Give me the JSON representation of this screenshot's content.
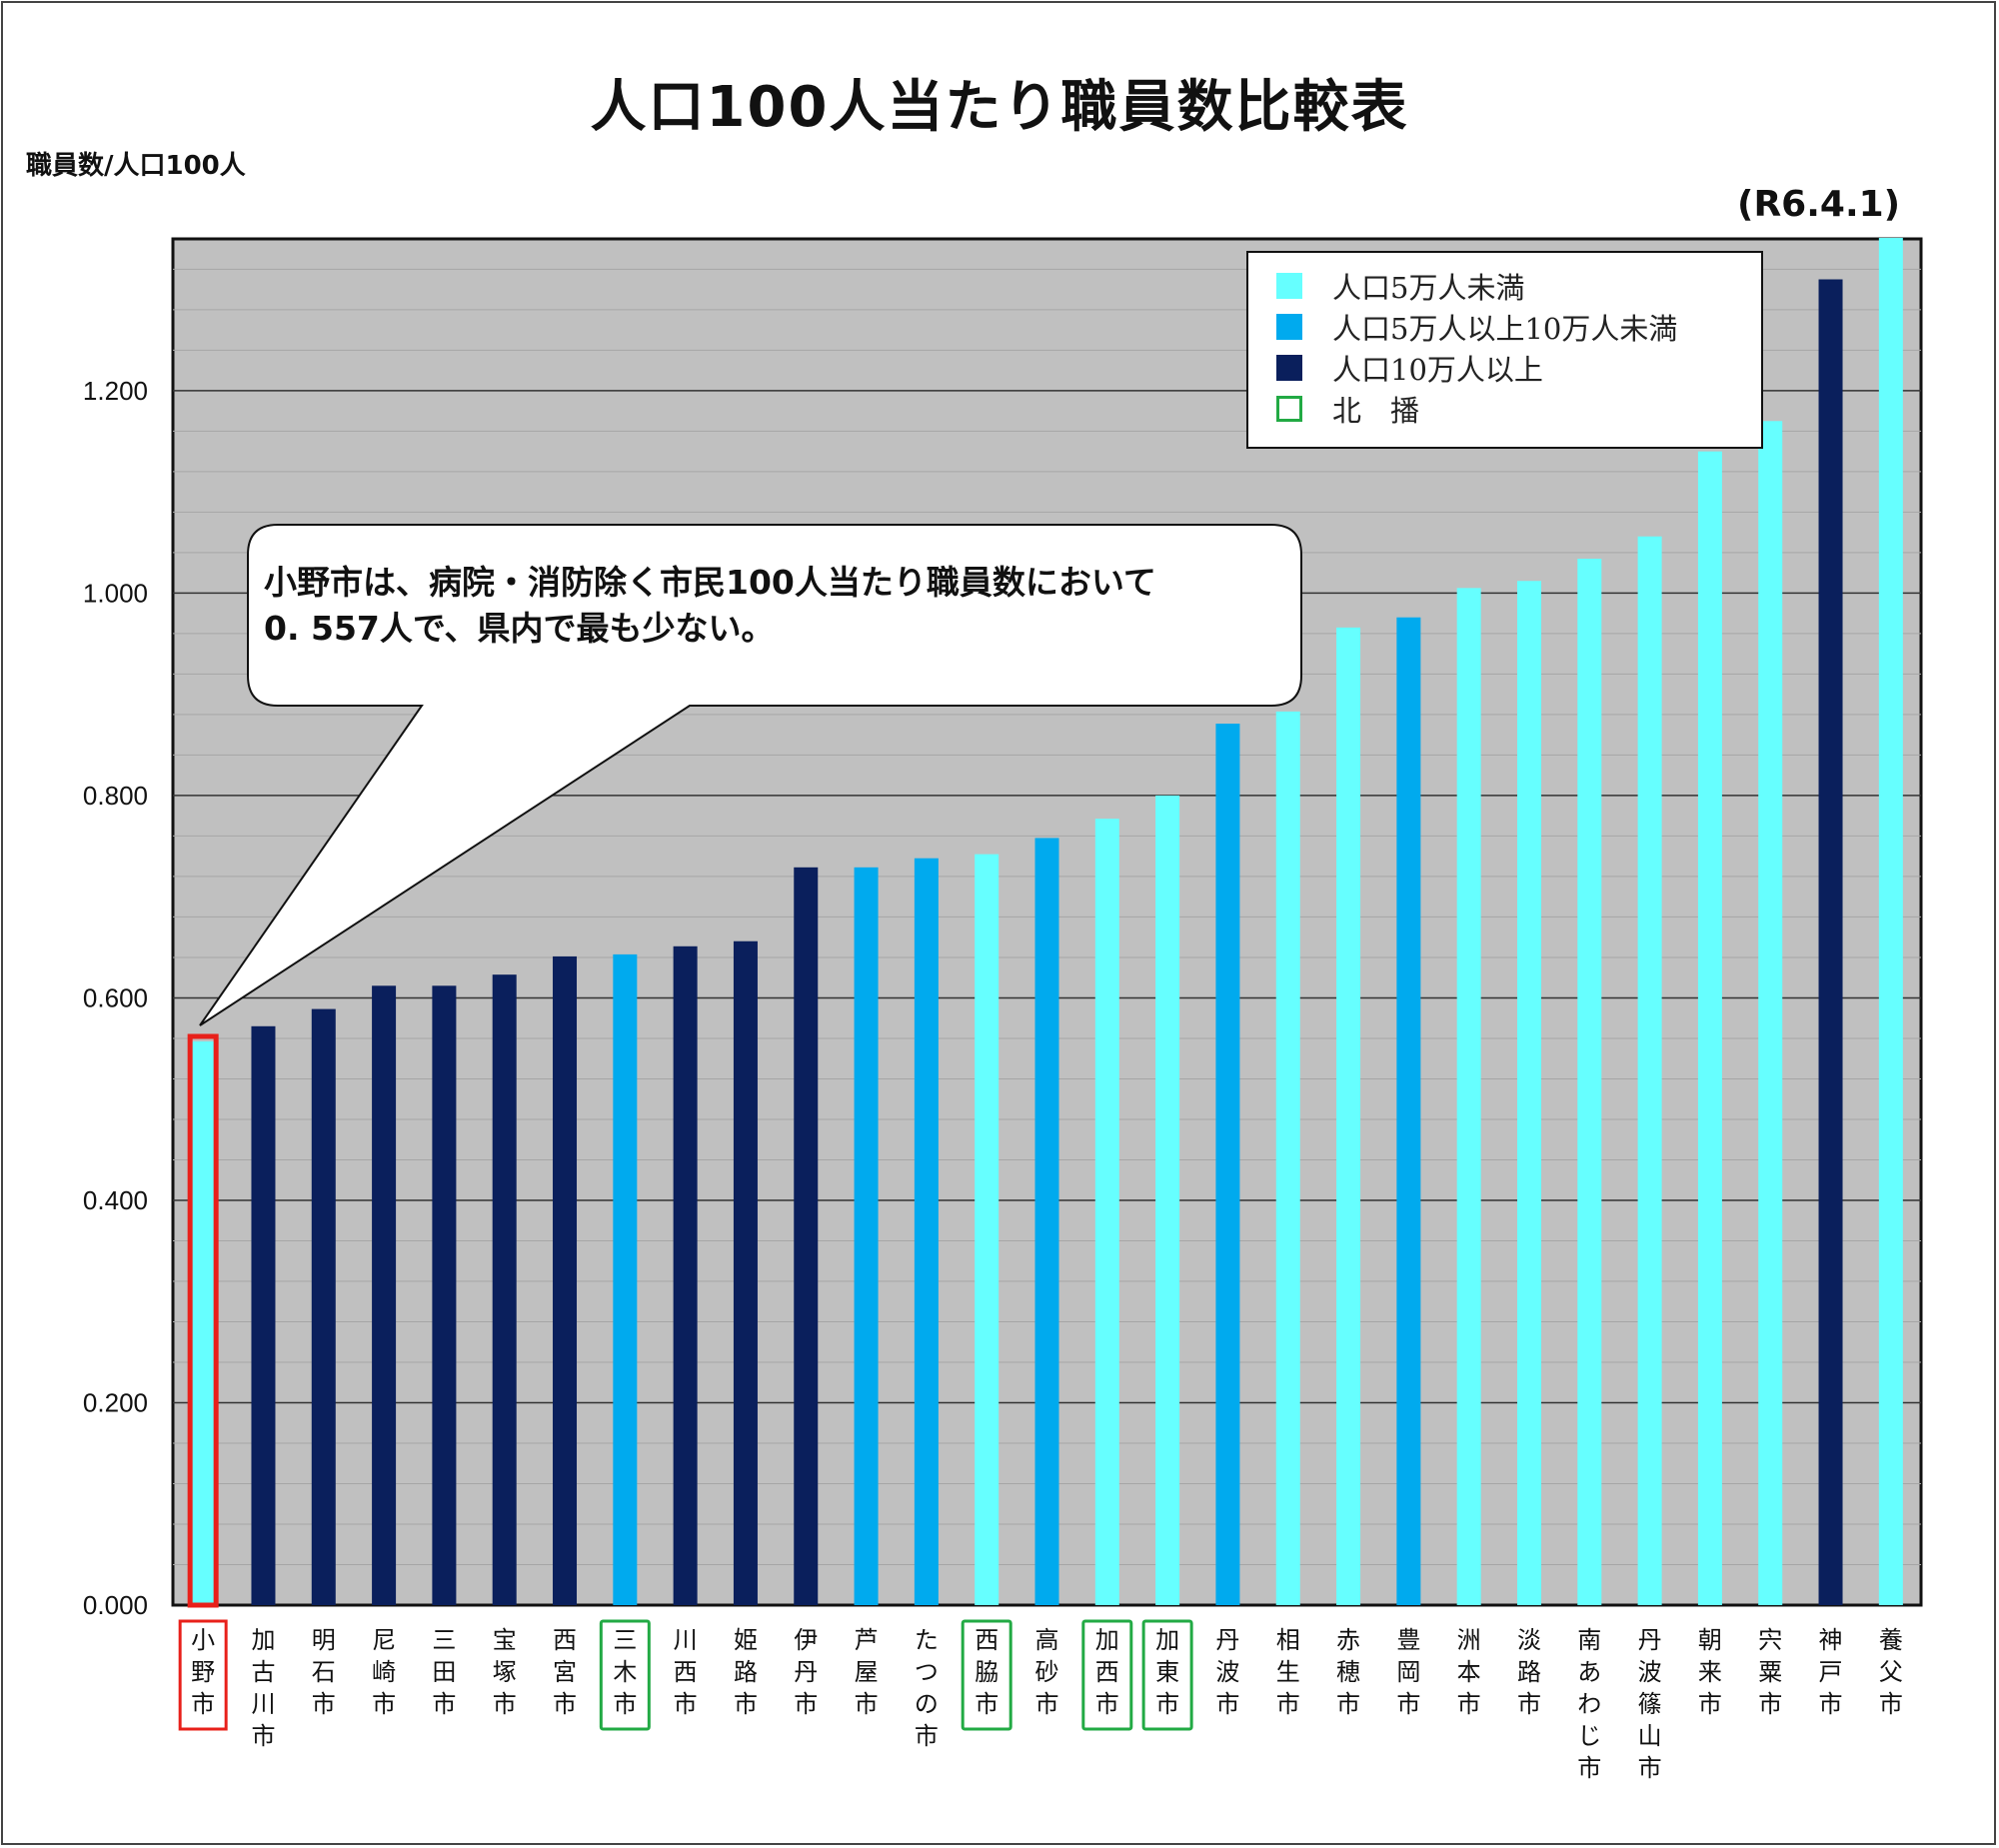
{
  "title": "人口100人当たり職員数比較表",
  "y_unit_label": "職員数/人口100人",
  "as_of": "(R6.4.1)",
  "callout": {
    "line1": "小野市は、病院・消防除く市民100人当たり職員数において",
    "line2": "0. 557人で、県内で最も少ない。"
  },
  "legend": [
    {
      "label": "人口5万人未満",
      "color": "#66FFFF",
      "style": "filled"
    },
    {
      "label": "人口5万人以上10万人未満",
      "color": "#00AAEE",
      "style": "filled"
    },
    {
      "label": "人口10万人以上",
      "color": "#0A1F5C",
      "style": "filled"
    },
    {
      "label": "北　播",
      "color": "#22AA44",
      "style": "outline"
    }
  ],
  "colors": {
    "small": "#66FFFF",
    "medium": "#00AAEE",
    "large": "#0A1F5C",
    "hokuban_outline": "#22AA44",
    "ono_outline": "#E8201A",
    "plot_background": "#C0C0C0"
  },
  "chart_data": {
    "type": "bar",
    "ylim": [
      0,
      1.35
    ],
    "yticks": [
      "0.000",
      "0.200",
      "0.400",
      "0.600",
      "0.800",
      "1.000",
      "1.200"
    ],
    "grid": true,
    "legend_position": "top-right",
    "categories": [
      "小野市",
      "加古川市",
      "明石市",
      "尼崎市",
      "三田市",
      "宝塚市",
      "西宮市",
      "三木市",
      "川西市",
      "姫路市",
      "伊丹市",
      "芦屋市",
      "たつの市",
      "西脇市",
      "高砂市",
      "加西市",
      "加東市",
      "丹波市",
      "相生市",
      "赤穂市",
      "豊岡市",
      "洲本市",
      "淡路市",
      "南あわじ市",
      "丹波篠山市",
      "朝来市",
      "宍粟市",
      "神戸市",
      "養父市"
    ],
    "values": [
      0.557,
      0.572,
      0.589,
      0.612,
      0.612,
      0.623,
      0.641,
      0.643,
      0.651,
      0.656,
      0.729,
      0.729,
      0.738,
      0.742,
      0.758,
      0.777,
      0.8,
      0.871,
      0.883,
      0.966,
      0.976,
      1.005,
      1.012,
      1.034,
      1.056,
      1.14,
      1.17,
      1.31,
      1.351
    ],
    "population_class": [
      "small",
      "large",
      "large",
      "large",
      "large",
      "large",
      "large",
      "medium",
      "large",
      "large",
      "large",
      "medium",
      "medium",
      "small",
      "medium",
      "small",
      "small",
      "medium",
      "small",
      "small",
      "medium",
      "small",
      "small",
      "small",
      "small",
      "small",
      "small",
      "large",
      "small"
    ],
    "outline": [
      "ono",
      "none",
      "none",
      "none",
      "none",
      "none",
      "none",
      "hokuban",
      "none",
      "none",
      "none",
      "none",
      "none",
      "hokuban",
      "none",
      "hokuban",
      "hokuban",
      "none",
      "none",
      "none",
      "none",
      "none",
      "none",
      "none",
      "none",
      "none",
      "none",
      "none",
      "none"
    ]
  }
}
